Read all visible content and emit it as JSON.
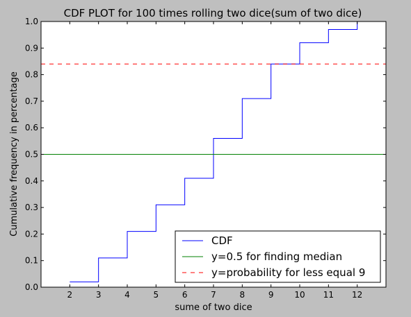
{
  "chart_data": {
    "type": "line",
    "title": "CDF PLOT for 100 times rolling two dice(sum of two dice)",
    "xlabel": "sume of two dice",
    "ylabel": "Cumulative frequency in percentage",
    "xlim": [
      1,
      13
    ],
    "ylim": [
      0.0,
      1.0
    ],
    "xticks": [
      "2",
      "3",
      "4",
      "5",
      "6",
      "7",
      "8",
      "9",
      "10",
      "11",
      "12"
    ],
    "yticks": [
      "0.0",
      "0.1",
      "0.2",
      "0.3",
      "0.4",
      "0.5",
      "0.6",
      "0.7",
      "0.8",
      "0.9",
      "1.0"
    ],
    "grid": false,
    "legend_position": "lower-right",
    "series": [
      {
        "name": "CDF",
        "kind": "step",
        "color": "#0000ff",
        "style": "solid",
        "x": [
          2,
          3,
          4,
          5,
          6,
          7,
          8,
          9,
          10,
          11,
          12
        ],
        "y": [
          0.02,
          0.11,
          0.21,
          0.31,
          0.41,
          0.56,
          0.71,
          0.84,
          0.92,
          0.97,
          1.0
        ]
      },
      {
        "name": "y=0.5 for finding median",
        "kind": "hline",
        "color": "#008000",
        "style": "solid",
        "y": 0.5
      },
      {
        "name": "y=probability for less equal 9",
        "kind": "hline",
        "color": "#ff0000",
        "style": "dashed",
        "y": 0.84
      }
    ]
  }
}
